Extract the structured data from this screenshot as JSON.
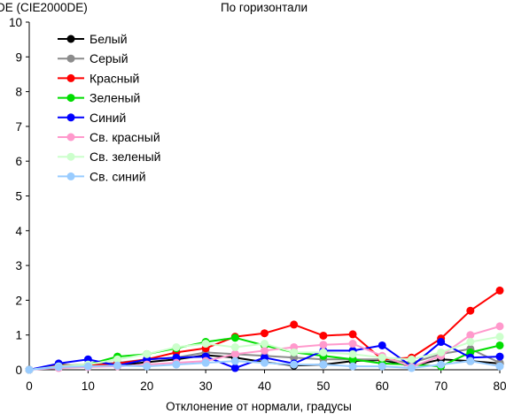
{
  "chart_data": {
    "type": "line",
    "title": "По горизонтали",
    "ylabel": "DE (CIE2000DE)",
    "xlabel": "Отклонение от нормали, градусы",
    "x": [
      0,
      5,
      10,
      15,
      20,
      25,
      30,
      35,
      40,
      45,
      50,
      55,
      60,
      65,
      70,
      75,
      80
    ],
    "xlim": [
      0,
      80
    ],
    "ylim": [
      0,
      10
    ],
    "xticks": [
      "0",
      "10",
      "20",
      "30",
      "40",
      "50",
      "60",
      "70",
      "80"
    ],
    "yticks": [
      "0",
      "1",
      "2",
      "3",
      "4",
      "5",
      "6",
      "7",
      "8",
      "9",
      "10"
    ],
    "grid": false,
    "legend_position": "top-left",
    "series": [
      {
        "name": "Белый",
        "color": "#000000",
        "values": [
          0,
          0.15,
          0.1,
          0.12,
          0.22,
          0.3,
          0.42,
          0.35,
          0.22,
          0.12,
          0.15,
          0.25,
          0.28,
          0.1,
          0.3,
          0.25,
          0.18
        ]
      },
      {
        "name": "Серый",
        "color": "#8c8c8c",
        "values": [
          0,
          0.12,
          0.15,
          0.2,
          0.3,
          0.35,
          0.5,
          0.45,
          0.4,
          0.35,
          0.3,
          0.3,
          0.3,
          0.2,
          0.45,
          0.6,
          0.2
        ]
      },
      {
        "name": "Красный",
        "color": "#ff0000",
        "values": [
          0,
          0.12,
          0.12,
          0.18,
          0.3,
          0.5,
          0.62,
          0.95,
          1.05,
          1.3,
          0.98,
          1.02,
          0.3,
          0.35,
          0.9,
          1.7,
          2.28
        ]
      },
      {
        "name": "Зеленый",
        "color": "#00dd00",
        "values": [
          0,
          0.1,
          0.15,
          0.38,
          0.45,
          0.62,
          0.8,
          0.92,
          0.7,
          0.5,
          0.4,
          0.3,
          0.18,
          0.15,
          0.1,
          0.5,
          0.7
        ]
      },
      {
        "name": "Синий",
        "color": "#0000ff",
        "values": [
          0,
          0.18,
          0.3,
          0.12,
          0.3,
          0.35,
          0.38,
          0.05,
          0.35,
          0.18,
          0.55,
          0.55,
          0.7,
          0.1,
          0.8,
          0.35,
          0.38
        ]
      },
      {
        "name": "Св. красный",
        "color": "#ff99cc",
        "values": [
          0,
          0.05,
          0.08,
          0.1,
          0.15,
          0.2,
          0.25,
          0.45,
          0.55,
          0.65,
          0.72,
          0.75,
          0.4,
          0.08,
          0.4,
          1.0,
          1.25
        ]
      },
      {
        "name": "Св. зеленый",
        "color": "#ccffcc",
        "values": [
          0,
          0.1,
          0.15,
          0.3,
          0.45,
          0.65,
          0.75,
          0.65,
          0.75,
          0.5,
          0.5,
          0.45,
          0.35,
          0.3,
          0.5,
          0.8,
          0.95
        ]
      },
      {
        "name": "Св. синий",
        "color": "#99ccff",
        "values": [
          0,
          0.08,
          0.1,
          0.12,
          0.1,
          0.15,
          0.2,
          0.25,
          0.2,
          0.15,
          0.15,
          0.1,
          0.1,
          0.05,
          0.15,
          0.25,
          0.1
        ]
      }
    ]
  }
}
